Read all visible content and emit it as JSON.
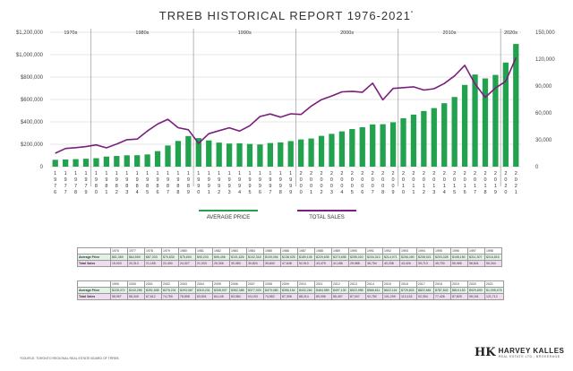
{
  "title": "TRREB HISTORICAL REPORT 1976-2021",
  "title_mark": "*",
  "source_note": "*SOURCE: TORONTO REGIONAL REAL ESTATE BOARD OF TRREB",
  "logo": {
    "name": "HARVEY KALLES",
    "sub": "REAL ESTATE LTD., BROKERAGE"
  },
  "colors": {
    "bar": "#22a24f",
    "line": "#7a1f7e",
    "grid": "#cccccc",
    "decade_div": "#888888"
  },
  "chart_data": {
    "type": "bar",
    "title": "TRREB HISTORICAL REPORT 1976-2021",
    "grid": "horizontal",
    "x": [
      "1976",
      "1977",
      "1978",
      "1979",
      "1980",
      "1981",
      "1982",
      "1983",
      "1984",
      "1985",
      "1986",
      "1987",
      "1988",
      "1989",
      "1990",
      "1991",
      "1992",
      "1993",
      "1994",
      "1995",
      "1996",
      "1997",
      "1998",
      "1999",
      "2000",
      "2001",
      "2002",
      "2003",
      "2004",
      "2005",
      "2006",
      "2007",
      "2008",
      "2009",
      "2010",
      "2011",
      "2012",
      "2013",
      "2014",
      "2015",
      "2016",
      "2017",
      "2018",
      "2019",
      "2020",
      "2021"
    ],
    "decades": [
      "1970s",
      "1980s",
      "1990s",
      "2000s",
      "2010s",
      "2020s"
    ],
    "y_left": {
      "ylim": [
        0,
        1200000
      ],
      "ticks": [
        "0",
        "$200,000",
        "$400,000",
        "$600,000",
        "$800,000",
        "$1,000,000",
        "$1,200,000"
      ]
    },
    "y_right": {
      "ylim": [
        0,
        150000
      ],
      "ticks": [
        "0",
        "30,000",
        "60,000",
        "90,000",
        "120,000",
        "150,000"
      ]
    },
    "series": [
      {
        "name": "AVERAGE PRICE",
        "type": "bar",
        "axis": "left",
        "values": [
          61389,
          64559,
          67333,
          70830,
          75694,
          90203,
          95496,
          101626,
          102318,
          109094,
          138925,
          189105,
          229635,
          273698,
          255020,
          234313,
          214971,
          206490,
          208921,
          203028,
          198150,
          211307,
          216815,
          228372,
          243255,
          251508,
          275231,
          293067,
          315231,
          335907,
          352388,
          377029,
          379080,
          396154,
          432264,
          464989,
          497130,
          522958,
          566611,
          622116,
          729824,
          822681,
          787842,
          819153,
          929699,
          1095475
        ]
      },
      {
        "name": "TOTAL SALES",
        "type": "line",
        "axis": "right",
        "values": [
          15003,
          20313,
          21155,
          22400,
          24327,
          21033,
          25306,
          30080,
          30824,
          39840,
          47648,
          52910,
          43475,
          41186,
          25988,
          36754,
          40238,
          43426,
          39713,
          45700,
          55965,
          58841,
          55344,
          58957,
          58349,
          67612,
          74759,
          78898,
          83501,
          84145,
          83084,
          93193,
          74552,
          87308,
          88214,
          89096,
          85497,
          87047,
          92782,
          101299,
          113133,
          92394,
          77426,
          87825,
          95151,
          121712
        ]
      }
    ]
  },
  "legend": [
    {
      "label": "AVERAGE PRICE",
      "color": "#22a24f"
    },
    {
      "label": "TOTAL SALES",
      "color": "#7a1f7e"
    }
  ],
  "tables": [
    {
      "row_labels": [
        "Average Price",
        "Total Sales"
      ],
      "years": [
        "1976",
        "1977",
        "1978",
        "1979",
        "1980",
        "1981",
        "1982",
        "1983",
        "1984",
        "1985",
        "1986",
        "1987",
        "1988",
        "1989",
        "1990",
        "1991",
        "1992",
        "1993",
        "1994",
        "1995",
        "1996",
        "1997",
        "1998"
      ],
      "prices": [
        "$61,389",
        "$64,559",
        "$67,333",
        "$70,830",
        "$75,694",
        "$90,203",
        "$95,496",
        "$101,626",
        "$102,318",
        "$109,094",
        "$138,925",
        "$189,105",
        "$229,635",
        "$273,698",
        "$255,020",
        "$234,313",
        "$214,971",
        "$206,490",
        "$208,921",
        "$203,028",
        "$198,150",
        "$211,307",
        "$216,815"
      ],
      "sales": [
        "15,003",
        "20,313",
        "21,155",
        "22,400",
        "24,327",
        "21,033",
        "25,306",
        "30,080",
        "30,824",
        "39,840",
        "47,648",
        "52,910",
        "43,475",
        "41,186",
        "25,988",
        "36,754",
        "40,238",
        "43,426",
        "39,713",
        "45,700",
        "55,965",
        "58,841",
        "55,344"
      ]
    },
    {
      "row_labels": [
        "Average Price",
        "Total Sales"
      ],
      "years": [
        "1999",
        "2000",
        "2001",
        "2002",
        "2003",
        "2004",
        "2005",
        "2006",
        "2007",
        "2008",
        "2009",
        "2010",
        "2011",
        "2012",
        "2013",
        "2014",
        "2015",
        "2016",
        "2017",
        "2018",
        "2019",
        "2020",
        "2021"
      ],
      "prices": [
        "$228,372",
        "$243,255",
        "$251,508",
        "$275,231",
        "$293,067",
        "$315,231",
        "$335,907",
        "$352,388",
        "$377,029",
        "$379,080",
        "$396,154",
        "$432,264",
        "$464,989",
        "$497,130",
        "$522,958",
        "$566,611",
        "$622,116",
        "$729,824",
        "$822,681",
        "$787,842",
        "$819,153",
        "$929,699",
        "$1,095,475"
      ],
      "sales": [
        "58,957",
        "58,349",
        "67,612",
        "74,759",
        "78,898",
        "83,501",
        "84,145",
        "83,084",
        "93,193",
        "74,552",
        "87,308",
        "88,214",
        "89,096",
        "85,497",
        "87,047",
        "92,782",
        "101,299",
        "113,133",
        "92,394",
        "77,426",
        "87,825",
        "95,151",
        "121,712"
      ]
    }
  ]
}
